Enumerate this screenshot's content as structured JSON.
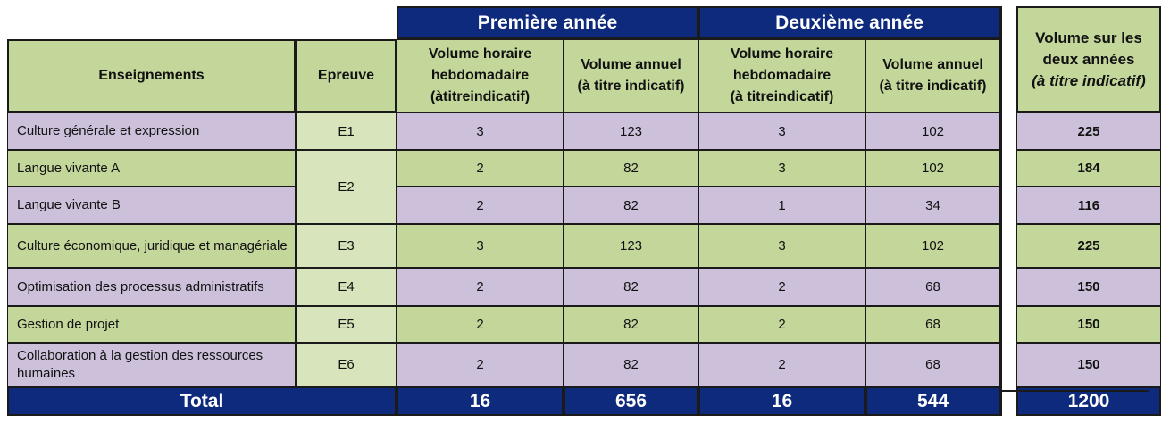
{
  "headers": {
    "year1": "Première année",
    "year2": "Deuxième année",
    "enseignements": "Enseignements",
    "epreuve": "Epreuve",
    "vol_hebdo_y1": [
      "Volume horaire",
      "hebdomadaire",
      "(àtitreindicatif)"
    ],
    "vol_annuel_y1": [
      "Volume annuel",
      "(à titre indicatif)"
    ],
    "vol_hebdo_y2": [
      "Volume horaire",
      "hebdomadaire",
      "(à titreindicatif)"
    ],
    "vol_annuel_y2": [
      "Volume annuel",
      "(à titre indicatif)"
    ],
    "total_col": [
      "Volume sur les",
      "deux années",
      "(à titre indicatif)"
    ]
  },
  "rows": [
    {
      "label": "Culture générale et expression",
      "epreuve": "E1",
      "h1": "3",
      "a1": "123",
      "h2": "3",
      "a2": "102",
      "total": "225"
    },
    {
      "label": "Langue vivante A",
      "epreuve": "E2",
      "h1": "2",
      "a1": "82",
      "h2": "3",
      "a2": "102",
      "total": "184"
    },
    {
      "label": "Langue vivante B",
      "epreuve": "",
      "h1": "2",
      "a1": "82",
      "h2": "1",
      "a2": "34",
      "total": "116"
    },
    {
      "label": "Culture économique, juridique et managériale",
      "epreuve": "E3",
      "h1": "3",
      "a1": "123",
      "h2": "3",
      "a2": "102",
      "total": "225"
    },
    {
      "label": "Optimisation des processus administratifs",
      "epreuve": "E4",
      "h1": "2",
      "a1": "82",
      "h2": "2",
      "a2": "68",
      "total": "150"
    },
    {
      "label": "Gestion de projet",
      "epreuve": "E5",
      "h1": "2",
      "a1": "82",
      "h2": "2",
      "a2": "68",
      "total": "150"
    },
    {
      "label": "Collaboration à la gestion des ressources humaines",
      "epreuve": "E6",
      "h1": "2",
      "a1": "82",
      "h2": "2",
      "a2": "68",
      "total": "150"
    }
  ],
  "totals": {
    "label": "Total",
    "h1": "16",
    "a1": "656",
    "h2": "16",
    "a2": "544",
    "grand": "1200"
  },
  "colors": {
    "header_blue": "#0e2a7c",
    "header_green": "#c4d79b",
    "row_purple": "#ccc0da",
    "row_green": "#c4d79b",
    "epreuve_green": "#d8e4bc"
  }
}
